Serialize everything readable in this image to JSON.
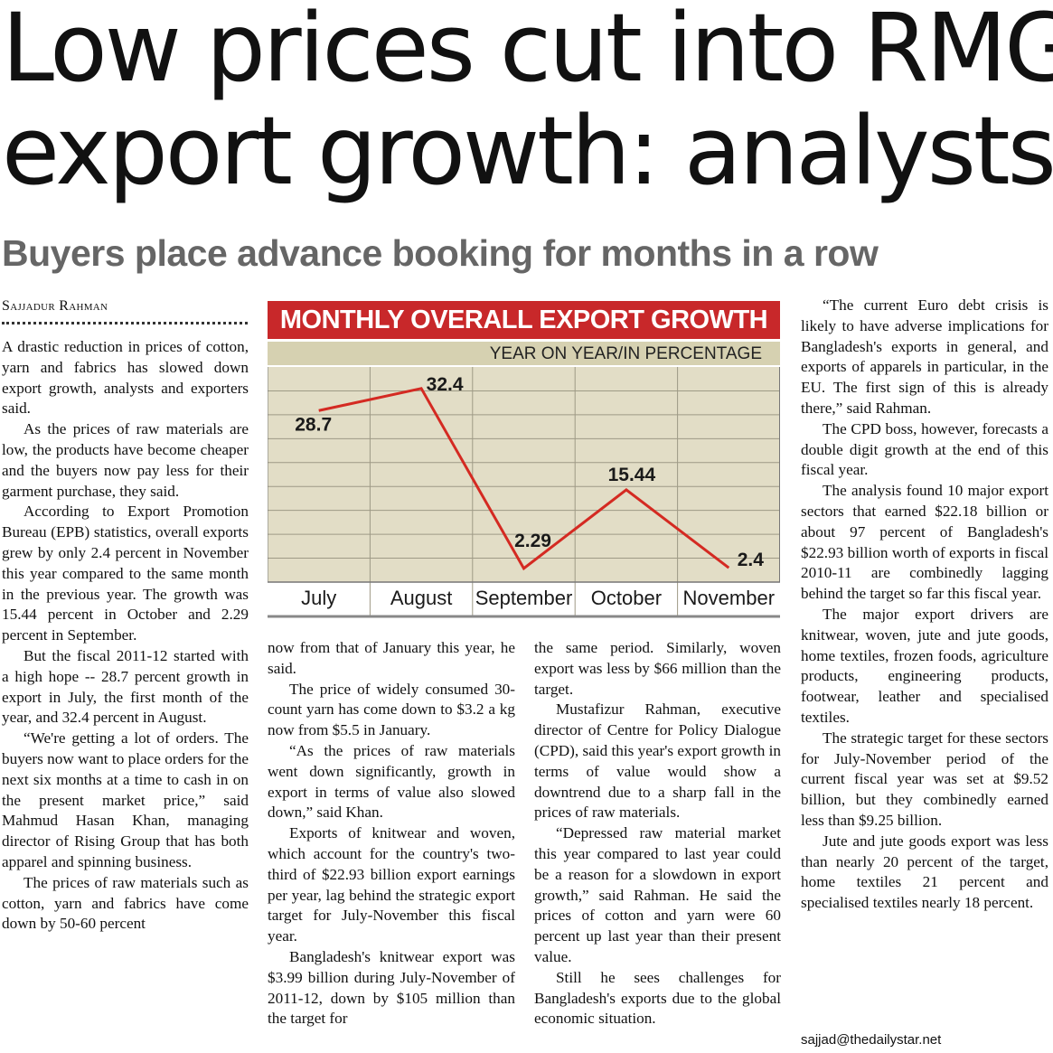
{
  "article": {
    "headline_line1": "Low prices cut into RMG",
    "headline_line2": "export growth: analysts",
    "subheadline": "Buyers place advance booking for months in a row",
    "byline": "Sajjadur Rahman",
    "email": "sajjad@thedailystar.net",
    "col1": [
      "A drastic reduction in prices of cotton, yarn and fabrics has slowed down export growth, analysts and exporters said.",
      "As the prices of raw materials are low, the products have become cheaper and the buyers now pay less for their garment purchase, they said.",
      "According to Export Promotion Bureau (EPB) statistics, overall exports grew by only 2.4 percent in November this year compared to the same month in the previous year. The growth was 15.44 percent in October and 2.29 percent in September.",
      "But the fiscal 2011-12 started with a high hope -- 28.7 percent growth in export in July, the first month of the year, and 32.4 percent in August.",
      "“We're getting a lot of orders. The buyers now want to place orders for the next six months at a time to cash in on the present market price,” said Mahmud Hasan Khan, managing director of Rising Group that has both apparel and spinning business.",
      "The prices of raw materials such as cotton, yarn and fabrics have come down by 50-60 percent"
    ],
    "col2": [
      "now from that of January this year, he said.",
      "The price of widely consumed 30-count yarn has come down to $3.2 a kg now from $5.5 in January.",
      "“As the prices of raw materials went down significantly, growth in export in terms of value also slowed down,” said Khan.",
      "Exports of knitwear and woven, which account for the country's two-third of $22.93 billion export earnings per year, lag behind the strategic export target for July-November this fiscal year.",
      "Bangladesh's knitwear export was $3.99 billion during July-November of 2011-12, down by $105 million than the target for"
    ],
    "col3": [
      "the same period. Similarly, woven export was less by $66 million than the target.",
      "Mustafizur Rahman, executive director of Centre for Policy Dialogue (CPD), said this year's export growth in terms of value would show a downtrend due to a sharp fall in the prices of raw materials.",
      "“Depressed raw material market this year compared to last year could be a reason for a slowdown in export growth,” said Rahman. He said the prices of cotton and yarn were 60 percent up last year than their present value.",
      "Still he sees challenges for Bangladesh's exports due to the global economic situation."
    ],
    "col4": [
      "“The current Euro debt crisis is likely to have adverse implications for Bangladesh's exports in general, and exports of apparels in particular, in the EU. The first sign of this is already there,” said Rahman.",
      "The CPD boss, however, forecasts a double digit growth at the end of this fiscal year.",
      "The analysis found 10 major export sectors that earned $22.18 billion or about 97 percent of Bangladesh's $22.93 billion worth of exports in fiscal 2010-11 are combinedly lagging behind the target so far this fiscal year.",
      "The major export drivers are knitwear, woven, jute and jute goods, home textiles, frozen foods, agriculture products, engineering products, footwear, leather and specialised textiles.",
      "The strategic target for these sectors for July-November period of the current fiscal year was set at $9.52 billion, but they combinedly earned less than $9.25 billion.",
      "Jute and jute goods export was less than nearly 20 percent of the target, home textiles 21 percent and specialised textiles nearly 18 percent."
    ]
  },
  "colors": {
    "chart_title_bg": "#c8282a",
    "chart_sub_bg": "#d6d1b1",
    "plot_bg": "#e2ddc6",
    "line": "#d42a22"
  },
  "chart_data": {
    "type": "line",
    "title": "MONTHLY OVERALL EXPORT GROWTH",
    "subtitle": "YEAR ON YEAR/IN PERCENTAGE",
    "categories": [
      "July",
      "August",
      "September",
      "October",
      "November"
    ],
    "values": [
      28.7,
      32.4,
      2.29,
      15.44,
      2.4
    ],
    "labels": [
      "28.7",
      "32.4",
      "2.29",
      "15.44",
      "2.4"
    ],
    "ylim": [
      0,
      36
    ],
    "grid": true,
    "xlabel": "",
    "ylabel": ""
  }
}
